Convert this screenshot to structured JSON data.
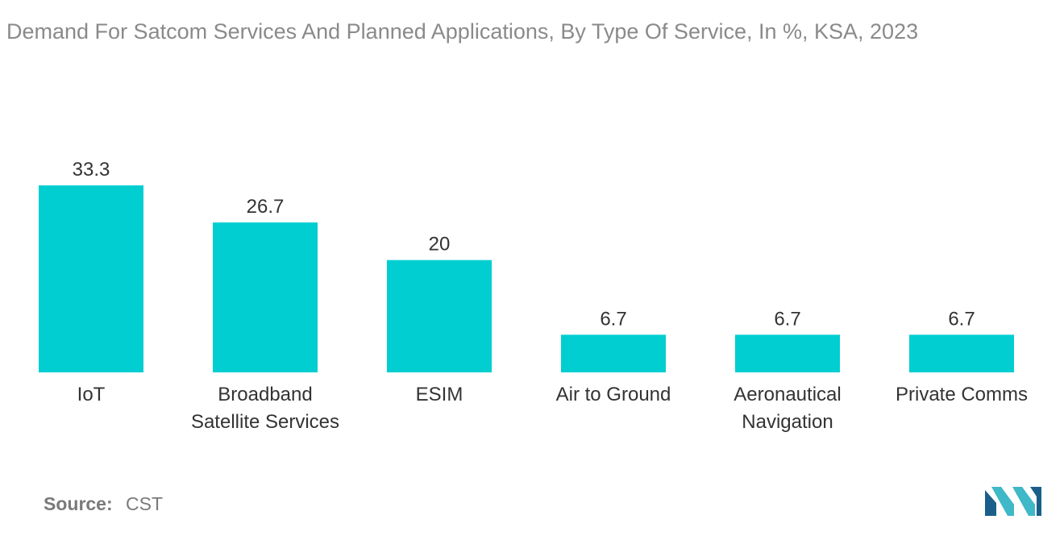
{
  "chart_data": {
    "type": "bar",
    "title": "Demand For Satcom Services And Planned Applications, By Type Of Service, In %, KSA, 2023",
    "categories": [
      [
        "IoT"
      ],
      [
        "Broadband",
        "Satellite Services"
      ],
      [
        "ESIM"
      ],
      [
        "Air to Ground"
      ],
      [
        "Aeronautical",
        "Navigation"
      ],
      [
        "Private Comms"
      ]
    ],
    "values": [
      33.3,
      26.7,
      20,
      6.7,
      6.7,
      6.7
    ],
    "value_labels": [
      "33.3",
      "26.7",
      "20",
      "6.7",
      "6.7",
      "6.7"
    ],
    "xlabel": "",
    "ylabel": "",
    "ylim": [
      0,
      33.3
    ],
    "grid": false,
    "legend": "none",
    "bar_color": "#00CED1"
  },
  "source": {
    "label": "Source:",
    "value": "CST"
  },
  "colors": {
    "title": "#8a8a8a",
    "text": "#333333",
    "logo_dark": "#1a5f8a",
    "logo_light": "#3fb8c8"
  },
  "logo": {
    "icon": "mordor-logo-icon"
  }
}
